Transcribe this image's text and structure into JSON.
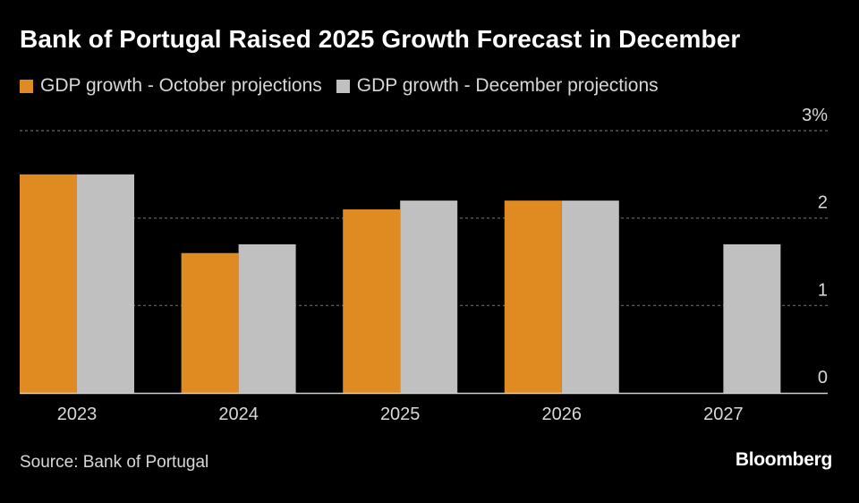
{
  "chart_data": {
    "type": "bar",
    "title": "Bank of Portugal Raised 2025 Growth Forecast in December",
    "categories": [
      "2023",
      "2024",
      "2025",
      "2026",
      "2027"
    ],
    "series": [
      {
        "name": "GDP growth - October projections",
        "color": "#e08a22",
        "values": [
          2.5,
          1.6,
          2.1,
          2.2,
          null
        ]
      },
      {
        "name": "GDP growth - December projections",
        "color": "#c0c0c0",
        "values": [
          2.5,
          1.7,
          2.2,
          2.2,
          1.7
        ]
      }
    ],
    "ylim": [
      0,
      3
    ],
    "yticks": [
      0,
      1,
      2,
      3
    ],
    "ytick_labels": [
      "0",
      "1",
      "2",
      "3%"
    ],
    "xlabel": "",
    "ylabel": "",
    "grid": true,
    "legend_position": "top-left"
  },
  "footer": {
    "source": "Source: Bank of Portugal",
    "brand": "Bloomberg"
  }
}
